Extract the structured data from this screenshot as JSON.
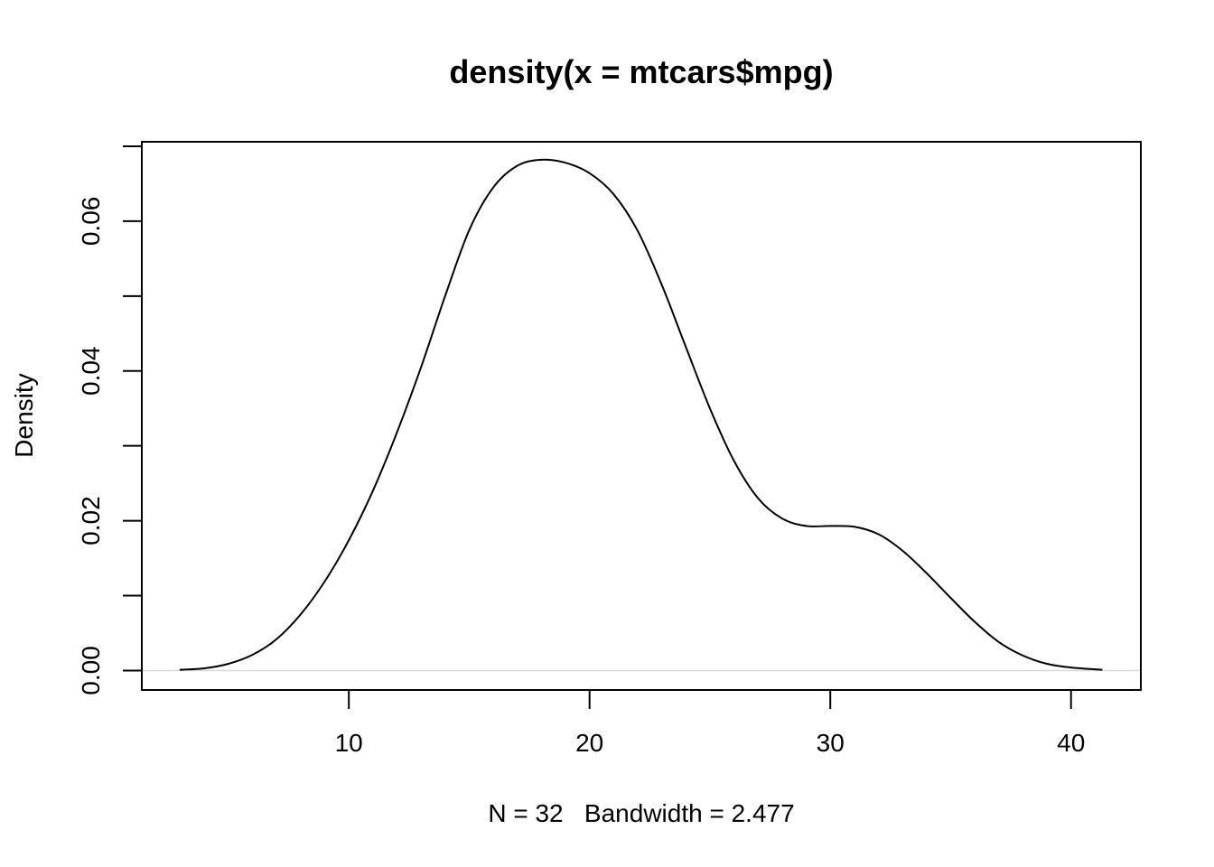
{
  "chart_data": {
    "type": "line",
    "title": "density(x = mtcars$mpg)",
    "xlabel": "N = 32   Bandwidth = 2.477",
    "ylabel": "Density",
    "xlim": [
      1.4,
      42.9
    ],
    "ylim": [
      -0.0026,
      0.0706
    ],
    "x_ticks": [
      10,
      20,
      30,
      40
    ],
    "x_tick_labels": [
      "10",
      "20",
      "30",
      "40"
    ],
    "y_ticks": [
      0,
      0.01,
      0.02,
      0.03,
      0.04,
      0.05,
      0.06,
      0.07
    ],
    "y_tick_labels": [
      "0.00",
      "",
      "0.02",
      "",
      "0.04",
      "",
      "0.06",
      ""
    ],
    "grid": false,
    "series": [
      {
        "x": [
          2.97,
          4.0,
          5.0,
          6.0,
          7.0,
          8.0,
          9.0,
          10.0,
          11.0,
          12.0,
          13.0,
          14.0,
          15.0,
          16.0,
          17.0,
          18.0,
          19.0,
          20.0,
          21.0,
          22.0,
          23.0,
          24.0,
          25.0,
          26.0,
          27.0,
          28.0,
          29.0,
          30.0,
          31.0,
          32.0,
          33.0,
          34.0,
          35.0,
          36.0,
          37.0,
          38.0,
          39.0,
          40.0,
          41.3
        ],
        "y": [
          0.0001,
          0.0003,
          0.0009,
          0.0021,
          0.0042,
          0.0075,
          0.0119,
          0.0174,
          0.024,
          0.0318,
          0.0405,
          0.05,
          0.0588,
          0.0645,
          0.0674,
          0.0682,
          0.0678,
          0.0664,
          0.0636,
          0.0587,
          0.0515,
          0.0432,
          0.035,
          0.028,
          0.023,
          0.0203,
          0.0193,
          0.0193,
          0.0192,
          0.0182,
          0.016,
          0.013,
          0.0097,
          0.0065,
          0.0038,
          0.002,
          0.0009,
          0.0004,
          0.0001
        ]
      }
    ]
  }
}
